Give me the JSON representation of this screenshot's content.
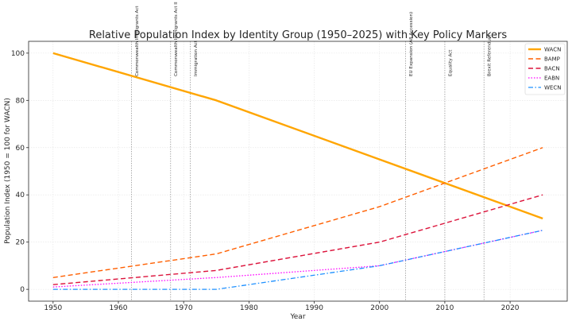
{
  "chart_data": {
    "type": "line",
    "title": "Relative Population Index by Identity Group (1950–2025) with Key Policy Markers",
    "xlabel": "Year",
    "ylabel": "Population Index (1950 = 100 for WACN)",
    "xlim": [
      1946.25,
      2028.75
    ],
    "ylim": [
      -5,
      105
    ],
    "x_ticks": [
      1950,
      1960,
      1970,
      1980,
      1990,
      2000,
      2010,
      2020
    ],
    "y_ticks": [
      0,
      20,
      40,
      60,
      80,
      100
    ],
    "grid": true,
    "legend_position": "top-right",
    "series": [
      {
        "name": "WACN",
        "color": "#FFA500",
        "dash": "solid",
        "x": [
          1950,
          1975,
          2000,
          2025
        ],
        "y": [
          100,
          80,
          55,
          30
        ]
      },
      {
        "name": "BAMP",
        "color": "#FF5F00",
        "dash": "dashed",
        "x": [
          1950,
          1975,
          2000,
          2025
        ],
        "y": [
          5,
          15,
          35,
          60
        ]
      },
      {
        "name": "BACN",
        "color": "#DC143C",
        "dash": "dashed",
        "x": [
          1950,
          1975,
          2000,
          2025
        ],
        "y": [
          2,
          8,
          20,
          40
        ]
      },
      {
        "name": "EABN",
        "color": "#FF00FF",
        "dash": "dotted",
        "x": [
          1950,
          1975,
          2000,
          2025
        ],
        "y": [
          1,
          5,
          10,
          25
        ]
      },
      {
        "name": "WECN",
        "color": "#1E90FF",
        "dash": "dashdot",
        "x": [
          1950,
          1975,
          2000,
          2025
        ],
        "y": [
          0,
          0,
          10,
          25
        ]
      }
    ],
    "annotations": [
      {
        "x": 1962,
        "label": "Commonwealth Immigrants Act"
      },
      {
        "x": 1968,
        "label": "Commonwealth Immigrants Act II"
      },
      {
        "x": 1971,
        "label": "Immigration Act"
      },
      {
        "x": 2004,
        "label": "EU Expansion (A8 Accession)"
      },
      {
        "x": 2010,
        "label": "Equality Act"
      },
      {
        "x": 2016,
        "label": "Brexit Referendum"
      }
    ]
  }
}
